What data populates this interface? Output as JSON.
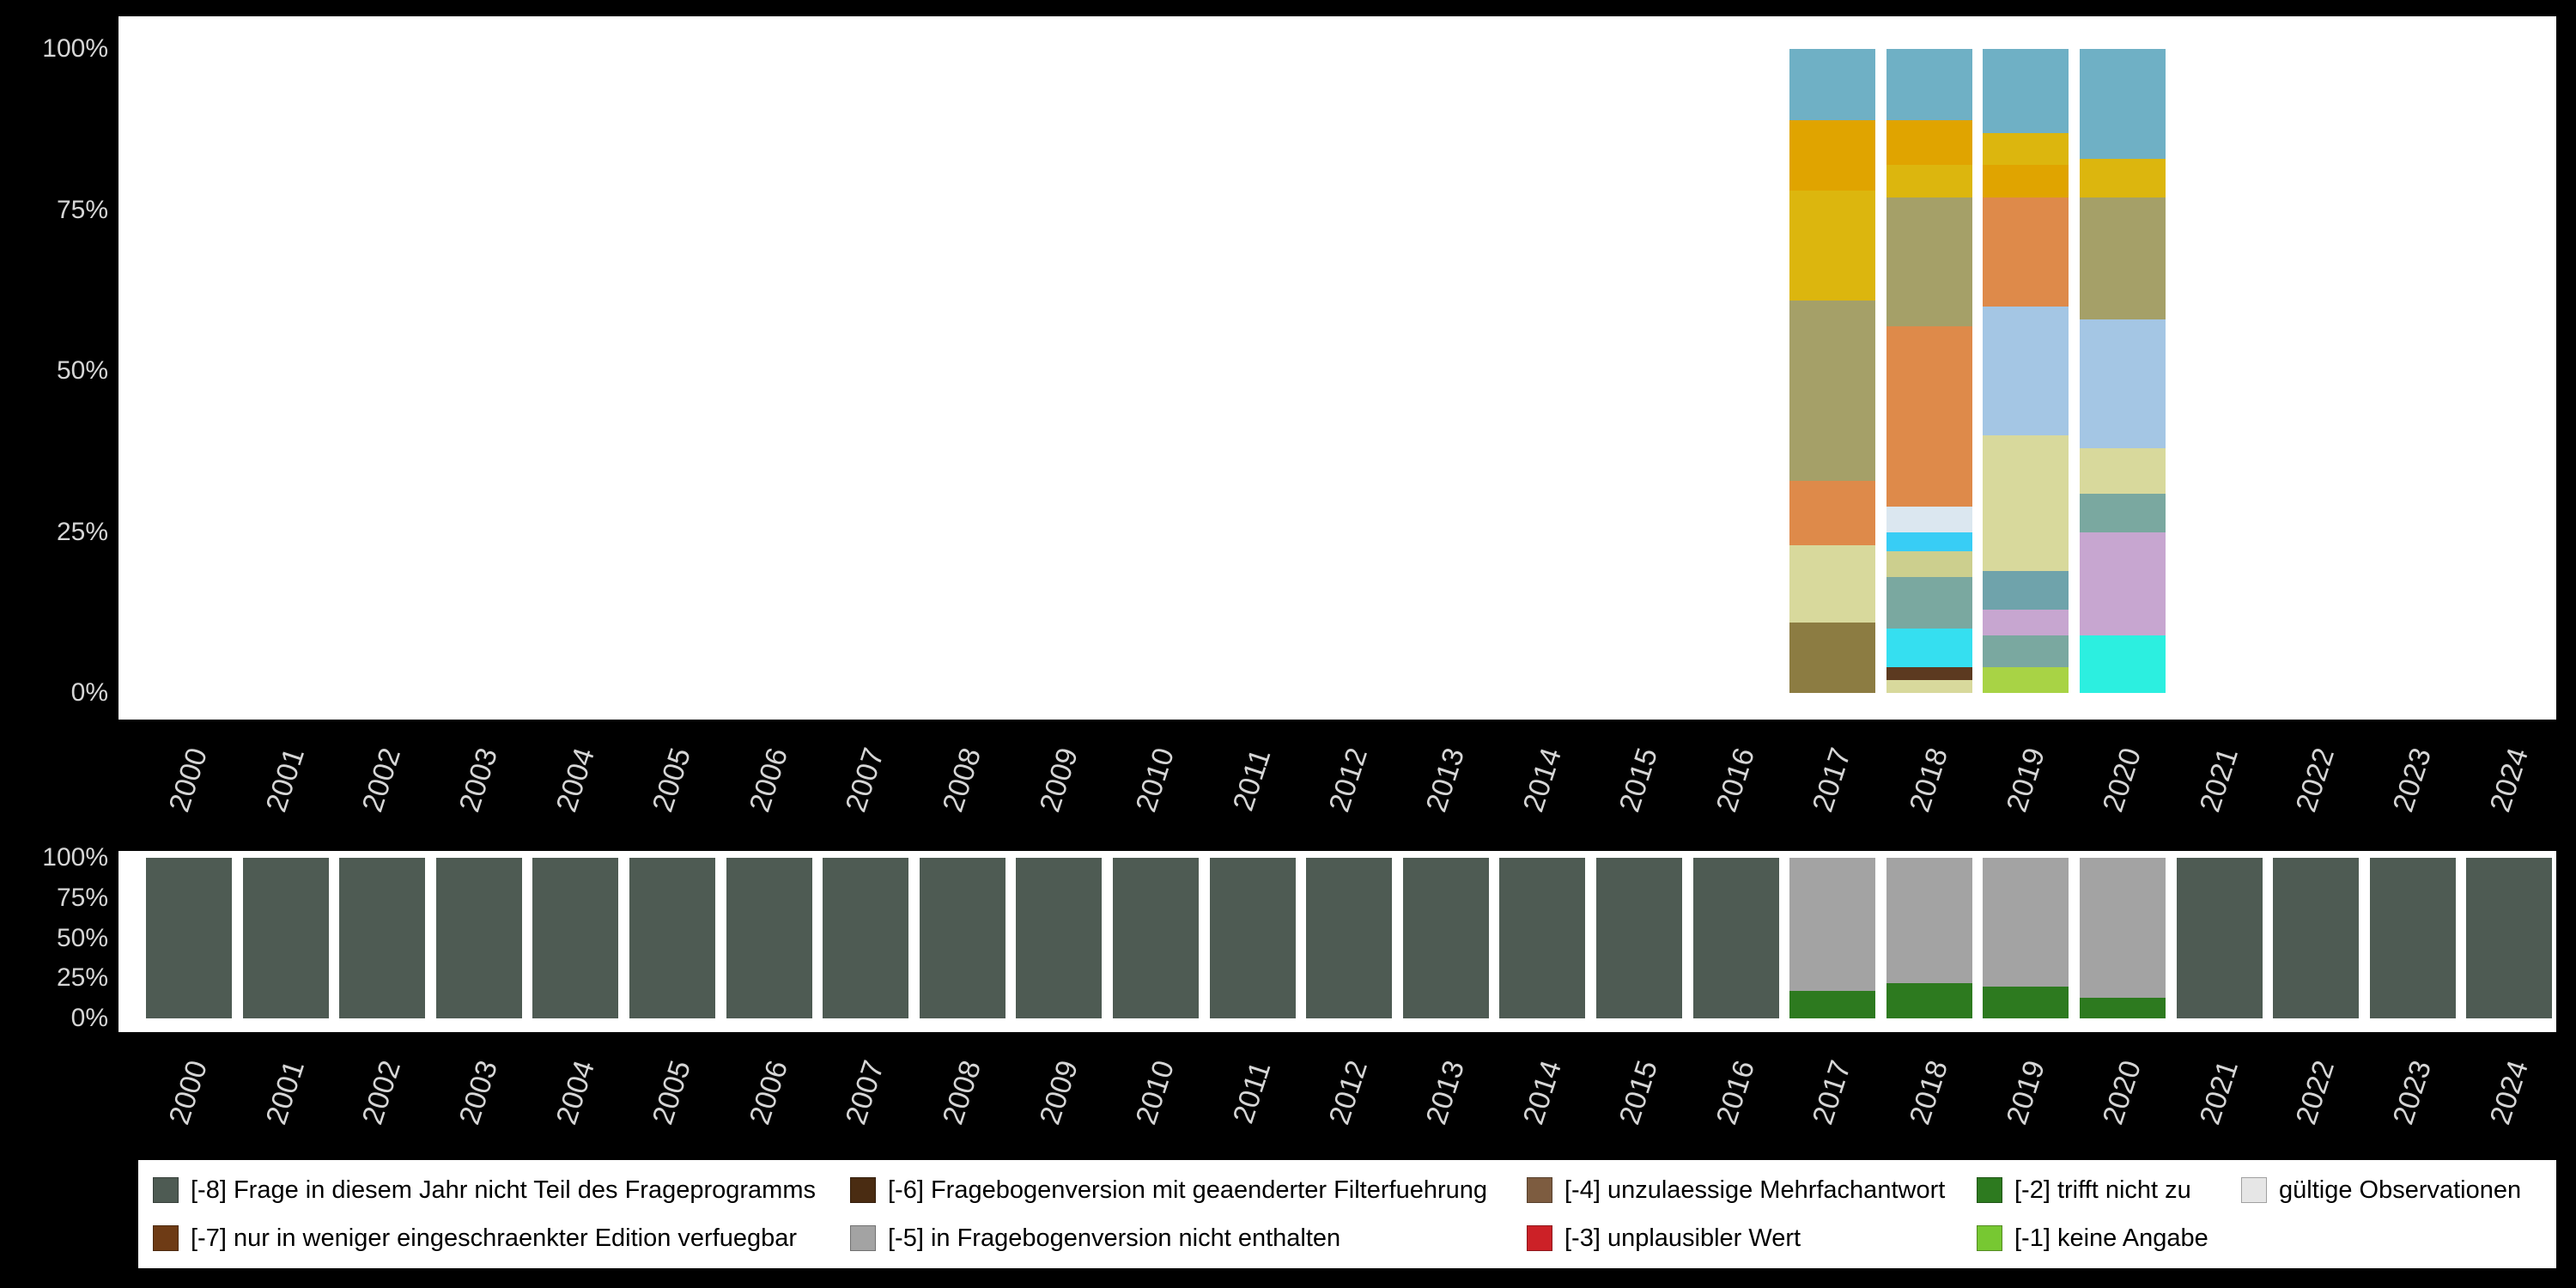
{
  "figure": {
    "background_color": "#000000",
    "plot_background_color": "#ffffff",
    "axis_text_color": "#d6d6d6"
  },
  "chart_data": [
    {
      "id": "top-stacked-bar",
      "type": "bar",
      "stacked": true,
      "unit": "percent",
      "ylim": [
        0,
        100
      ],
      "grid": false,
      "y_ticks": [
        "100%",
        "75%",
        "50%",
        "25%",
        "0%"
      ],
      "categories": [
        "2000",
        "2001",
        "2002",
        "2003",
        "2004",
        "2005",
        "2006",
        "2007",
        "2008",
        "2009",
        "2010",
        "2011",
        "2012",
        "2013",
        "2014",
        "2015",
        "2016",
        "2017",
        "2018",
        "2019",
        "2020",
        "2021",
        "2022",
        "2023",
        "2024"
      ],
      "bars": [
        {
          "category": "2017",
          "segments": [
            {
              "color": "#8c7c42",
              "value": 11
            },
            {
              "color": "#d8d99c",
              "value": 12
            },
            {
              "color": "#de8a4a",
              "value": 10
            },
            {
              "color": "#a5a068",
              "value": 28
            },
            {
              "color": "#dcb60e",
              "value": 17
            },
            {
              "color": "#e0a400",
              "value": 11
            },
            {
              "color": "#6fb0c5",
              "value": 11
            }
          ]
        },
        {
          "category": "2018",
          "segments": [
            {
              "color": "#d8d99c",
              "value": 2
            },
            {
              "color": "#5c3a20",
              "value": 2
            },
            {
              "color": "#35dff0",
              "value": 6
            },
            {
              "color": "#7aa8a0",
              "value": 8
            },
            {
              "color": "#cccf8e",
              "value": 4
            },
            {
              "color": "#38cdf5",
              "value": 3
            },
            {
              "color": "#dbe7f0",
              "value": 4
            },
            {
              "color": "#de8a4a",
              "value": 28
            },
            {
              "color": "#a5a068",
              "value": 20
            },
            {
              "color": "#dcb60e",
              "value": 5
            },
            {
              "color": "#e0a400",
              "value": 7
            },
            {
              "color": "#6fb0c5",
              "value": 11
            }
          ]
        },
        {
          "category": "2019",
          "segments": [
            {
              "color": "#a8d345",
              "value": 4
            },
            {
              "color": "#7aa8a0",
              "value": 5
            },
            {
              "color": "#c7a6d0",
              "value": 4
            },
            {
              "color": "#6fa3ab",
              "value": 6
            },
            {
              "color": "#d8d99c",
              "value": 21
            },
            {
              "color": "#a4c6e4",
              "value": 20
            },
            {
              "color": "#de8a4a",
              "value": 17
            },
            {
              "color": "#e0a400",
              "value": 5
            },
            {
              "color": "#dcb60e",
              "value": 5
            },
            {
              "color": "#6fb0c5",
              "value": 13
            }
          ]
        },
        {
          "category": "2020",
          "segments": [
            {
              "color": "#2cefe0",
              "value": 9
            },
            {
              "color": "#c7a6d0",
              "value": 16
            },
            {
              "color": "#7aa8a0",
              "value": 6
            },
            {
              "color": "#d8d99c",
              "value": 7
            },
            {
              "color": "#a4c6e4",
              "value": 20
            },
            {
              "color": "#a5a068",
              "value": 19
            },
            {
              "color": "#dcb60e",
              "value": 6
            },
            {
              "color": "#6fb0c5",
              "value": 17
            }
          ]
        }
      ]
    },
    {
      "id": "bottom-stacked-bar",
      "type": "bar",
      "stacked": true,
      "unit": "percent",
      "ylim": [
        0,
        100
      ],
      "grid": false,
      "y_ticks": [
        "100%",
        "75%",
        "50%",
        "25%",
        "0%"
      ],
      "categories": [
        "2000",
        "2001",
        "2002",
        "2003",
        "2004",
        "2005",
        "2006",
        "2007",
        "2008",
        "2009",
        "2010",
        "2011",
        "2012",
        "2013",
        "2014",
        "2015",
        "2016",
        "2017",
        "2018",
        "2019",
        "2020",
        "2021",
        "2022",
        "2023",
        "2024"
      ],
      "series": [
        {
          "name": "[-2] trifft nicht zu",
          "color": "#2d7a1f",
          "values": [
            0,
            0,
            0,
            0,
            0,
            0,
            0,
            0,
            0,
            0,
            0,
            0,
            0,
            0,
            0,
            0,
            0,
            17,
            22,
            20,
            13,
            0,
            0,
            0,
            0
          ]
        },
        {
          "name": "[-5] in Fragebogenversion nicht enthalten",
          "color": "#a3a3a3",
          "values": [
            0,
            0,
            0,
            0,
            0,
            0,
            0,
            0,
            0,
            0,
            0,
            0,
            0,
            0,
            0,
            0,
            0,
            83,
            78,
            80,
            87,
            0,
            0,
            0,
            0
          ]
        },
        {
          "name": "[-8] Frage in diesem Jahr nicht Teil des Frageprogramms",
          "color": "#4e5b53",
          "values": [
            100,
            100,
            100,
            100,
            100,
            100,
            100,
            100,
            100,
            100,
            100,
            100,
            100,
            100,
            100,
            100,
            100,
            0,
            0,
            0,
            0,
            100,
            100,
            100,
            100
          ]
        }
      ]
    }
  ],
  "legend": {
    "items": [
      {
        "label": "[-8] Frage in diesem Jahr nicht Teil des Frageprogramms",
        "color": "#4e5b53"
      },
      {
        "label": "[-6] Fragebogenversion mit geaenderter Filterfuehrung",
        "color": "#4a2c12"
      },
      {
        "label": "[-4] unzulaessige Mehrfachantwort",
        "color": "#7d5c40"
      },
      {
        "label": "[-2] trifft nicht zu",
        "color": "#2d7a1f"
      },
      {
        "label": "gültige Observationen",
        "color": "#e6e6e6"
      },
      {
        "label": "[-7] nur in weniger eingeschraenkter Edition verfuegbar",
        "color": "#6e3b15"
      },
      {
        "label": "[-5] in Fragebogenversion nicht enthalten",
        "color": "#a3a3a3"
      },
      {
        "label": "[-3] unplausibler Wert",
        "color": "#cc2127"
      },
      {
        "label": "[-1] keine Angabe",
        "color": "#77c832"
      }
    ]
  }
}
